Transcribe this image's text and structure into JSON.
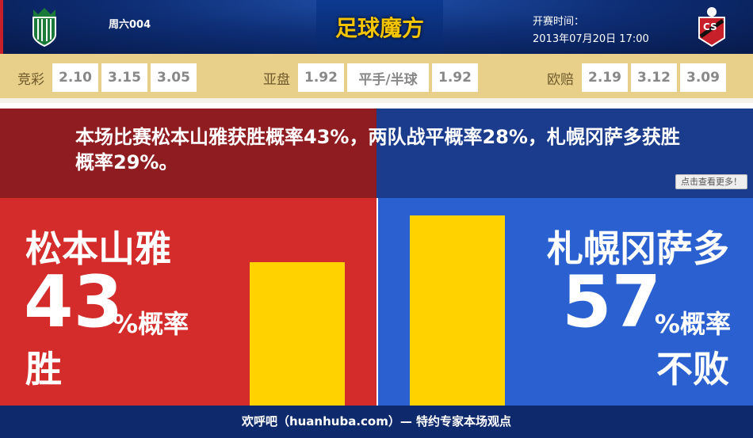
{
  "header": {
    "match_no": "周六004",
    "brand": "足球魔方",
    "kickoff_label": "开赛时间：",
    "kickoff_time": "2013年07月20日 17:00",
    "home_logo_icon": "matsumoto-crest-icon",
    "away_logo_icon": "sapporo-crest-icon"
  },
  "odds": {
    "jingcai": {
      "label": "竞彩",
      "values": [
        "2.10",
        "3.15",
        "3.05"
      ]
    },
    "yapan": {
      "label": "亚盘",
      "values": [
        "1.92",
        "平手/半球",
        "1.92"
      ]
    },
    "oupei": {
      "label": "欧赔",
      "values": [
        "2.19",
        "3.12",
        "3.09"
      ]
    }
  },
  "message": "本场比赛松本山雅获胜概率43%，两队战平概率28%，札幌冈萨多获胜概率29%。",
  "more_button": "点击查看更多！",
  "home": {
    "team": "松本山雅",
    "percent": "43",
    "unit": "%概率",
    "outcome": "胜",
    "probability": 43
  },
  "away": {
    "team": "札幌冈萨多",
    "percent": "57",
    "unit": "%概率",
    "outcome": "不败",
    "probability": 57
  },
  "colors": {
    "home": "#d42b2b",
    "away": "#2a60d0",
    "bar": "#ffd200"
  },
  "footer": "欢呼吧（huanhuba.com）— 特约专家本场观点"
}
